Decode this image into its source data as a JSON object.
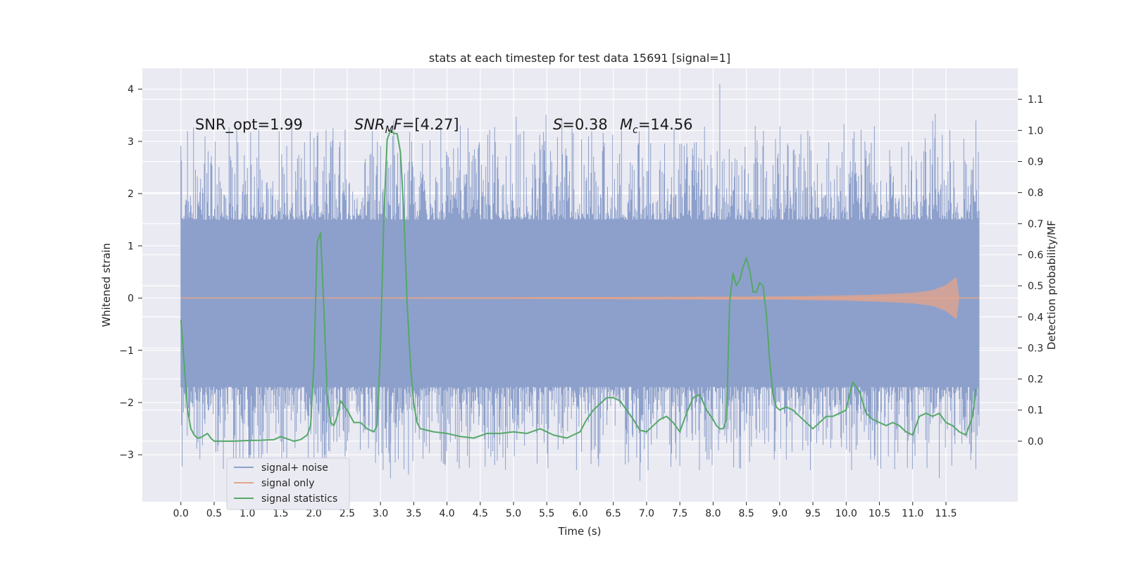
{
  "chart_data": {
    "type": "line",
    "title": "stats at each timestep for test data 15691 [signal=1]",
    "xlabel": "Time (s)",
    "ylabel": "Whitened strain",
    "ylabel_right": "Detection probability/MF",
    "xlim": [
      -0.58,
      12.58
    ],
    "ylim": [
      -3.9,
      4.4
    ],
    "ylim_right": [
      -0.195,
      1.2
    ],
    "x_ticks": [
      "0.0",
      "0.5",
      "1.0",
      "1.5",
      "2.0",
      "2.5",
      "3.0",
      "3.5",
      "4.0",
      "4.5",
      "5.0",
      "5.5",
      "6.0",
      "6.5",
      "7.0",
      "7.5",
      "8.0",
      "8.5",
      "9.0",
      "9.5",
      "10.0",
      "10.5",
      "11.0",
      "11.5"
    ],
    "y_ticks": [
      "4",
      "3",
      "2",
      "1",
      "0",
      "−1",
      "−2",
      "−3"
    ],
    "y_ticks_right": [
      "1.1",
      "1.0",
      "0.9",
      "0.8",
      "0.7",
      "0.6",
      "0.5",
      "0.4",
      "0.3",
      "0.2",
      "0.1",
      "0.0"
    ],
    "grid": true,
    "legend_position": "lower-left",
    "annotations": [
      {
        "id": "snr-opt",
        "text": "SNR_opt=1.99"
      },
      {
        "id": "snr-mf",
        "text": "=[4.27]",
        "math": "SNR",
        "sub": "M",
        "tail": "F"
      },
      {
        "id": "s-val",
        "text": "=0.38",
        "math": "S"
      },
      {
        "id": "mc-val",
        "text": "=14.56",
        "math": "M",
        "sub": "c"
      }
    ],
    "series": [
      {
        "name": "signal+ noise",
        "color": "#8da0cb",
        "band": {
          "x_start": 0.0,
          "x_end": 12.0,
          "core_range": [
            -1.7,
            1.5
          ],
          "extreme_range": [
            -3.5,
            4.1
          ],
          "peak_values": [
            4.1,
            3.5,
            3.4,
            3.3,
            -3.4,
            -3.5
          ]
        }
      },
      {
        "name": "signal only",
        "color": "#e5a48a",
        "x": [
          0.0,
          9.0,
          10.0,
          10.5,
          11.0,
          11.3,
          11.5,
          11.6,
          11.66,
          11.7,
          12.0
        ],
        "amplitude": [
          0.0,
          0.03,
          0.05,
          0.07,
          0.1,
          0.15,
          0.25,
          0.35,
          0.4,
          0.0,
          0.0
        ]
      },
      {
        "name": "signal statistics",
        "color": "#55a868",
        "x": [
          0.0,
          0.05,
          0.1,
          0.15,
          0.2,
          0.25,
          0.3,
          0.4,
          0.45,
          0.5,
          0.6,
          0.8,
          1.0,
          1.2,
          1.4,
          1.5,
          1.7,
          1.8,
          1.9,
          1.95,
          2.0,
          2.05,
          2.1,
          2.15,
          2.2,
          2.25,
          2.3,
          2.35,
          2.4,
          2.5,
          2.6,
          2.7,
          2.8,
          2.9,
          2.95,
          3.0,
          3.05,
          3.1,
          3.15,
          3.2,
          3.25,
          3.3,
          3.35,
          3.4,
          3.45,
          3.5,
          3.55,
          3.6,
          3.7,
          3.8,
          4.0,
          4.2,
          4.4,
          4.6,
          4.8,
          5.0,
          5.2,
          5.4,
          5.6,
          5.8,
          6.0,
          6.1,
          6.2,
          6.3,
          6.4,
          6.5,
          6.6,
          6.7,
          6.8,
          6.9,
          7.0,
          7.1,
          7.2,
          7.3,
          7.4,
          7.5,
          7.6,
          7.7,
          7.8,
          7.9,
          8.0,
          8.05,
          8.1,
          8.15,
          8.2,
          8.25,
          8.3,
          8.35,
          8.4,
          8.45,
          8.5,
          8.55,
          8.6,
          8.65,
          8.7,
          8.75,
          8.8,
          8.85,
          8.9,
          8.95,
          9.0,
          9.1,
          9.2,
          9.3,
          9.4,
          9.5,
          9.6,
          9.7,
          9.8,
          9.9,
          10.0,
          10.05,
          10.1,
          10.2,
          10.3,
          10.4,
          10.5,
          10.6,
          10.7,
          10.8,
          10.9,
          11.0,
          11.05,
          11.1,
          11.2,
          11.3,
          11.4,
          11.5,
          11.6,
          11.7,
          11.8,
          11.9,
          11.95
        ],
        "values": [
          0.39,
          0.25,
          0.1,
          0.04,
          0.02,
          0.01,
          0.012,
          0.025,
          0.01,
          0.0,
          0.0,
          0.0,
          0.002,
          0.003,
          0.005,
          0.015,
          0.0,
          0.005,
          0.02,
          0.05,
          0.25,
          0.64,
          0.67,
          0.42,
          0.15,
          0.06,
          0.05,
          0.08,
          0.13,
          0.1,
          0.06,
          0.06,
          0.04,
          0.03,
          0.05,
          0.3,
          0.72,
          0.97,
          1.0,
          0.99,
          0.99,
          0.93,
          0.74,
          0.45,
          0.25,
          0.12,
          0.06,
          0.04,
          0.035,
          0.03,
          0.025,
          0.015,
          0.01,
          0.025,
          0.025,
          0.03,
          0.025,
          0.04,
          0.02,
          0.01,
          0.03,
          0.07,
          0.1,
          0.12,
          0.14,
          0.14,
          0.13,
          0.1,
          0.07,
          0.035,
          0.03,
          0.05,
          0.07,
          0.08,
          0.06,
          0.03,
          0.09,
          0.14,
          0.15,
          0.1,
          0.07,
          0.05,
          0.04,
          0.04,
          0.07,
          0.45,
          0.54,
          0.5,
          0.52,
          0.56,
          0.59,
          0.55,
          0.48,
          0.48,
          0.51,
          0.5,
          0.41,
          0.26,
          0.15,
          0.11,
          0.1,
          0.11,
          0.1,
          0.08,
          0.06,
          0.04,
          0.06,
          0.08,
          0.08,
          0.09,
          0.1,
          0.15,
          0.19,
          0.16,
          0.09,
          0.07,
          0.06,
          0.05,
          0.06,
          0.05,
          0.03,
          0.02,
          0.05,
          0.08,
          0.09,
          0.08,
          0.09,
          0.06,
          0.05,
          0.03,
          0.02,
          0.08,
          0.17
        ]
      }
    ]
  }
}
